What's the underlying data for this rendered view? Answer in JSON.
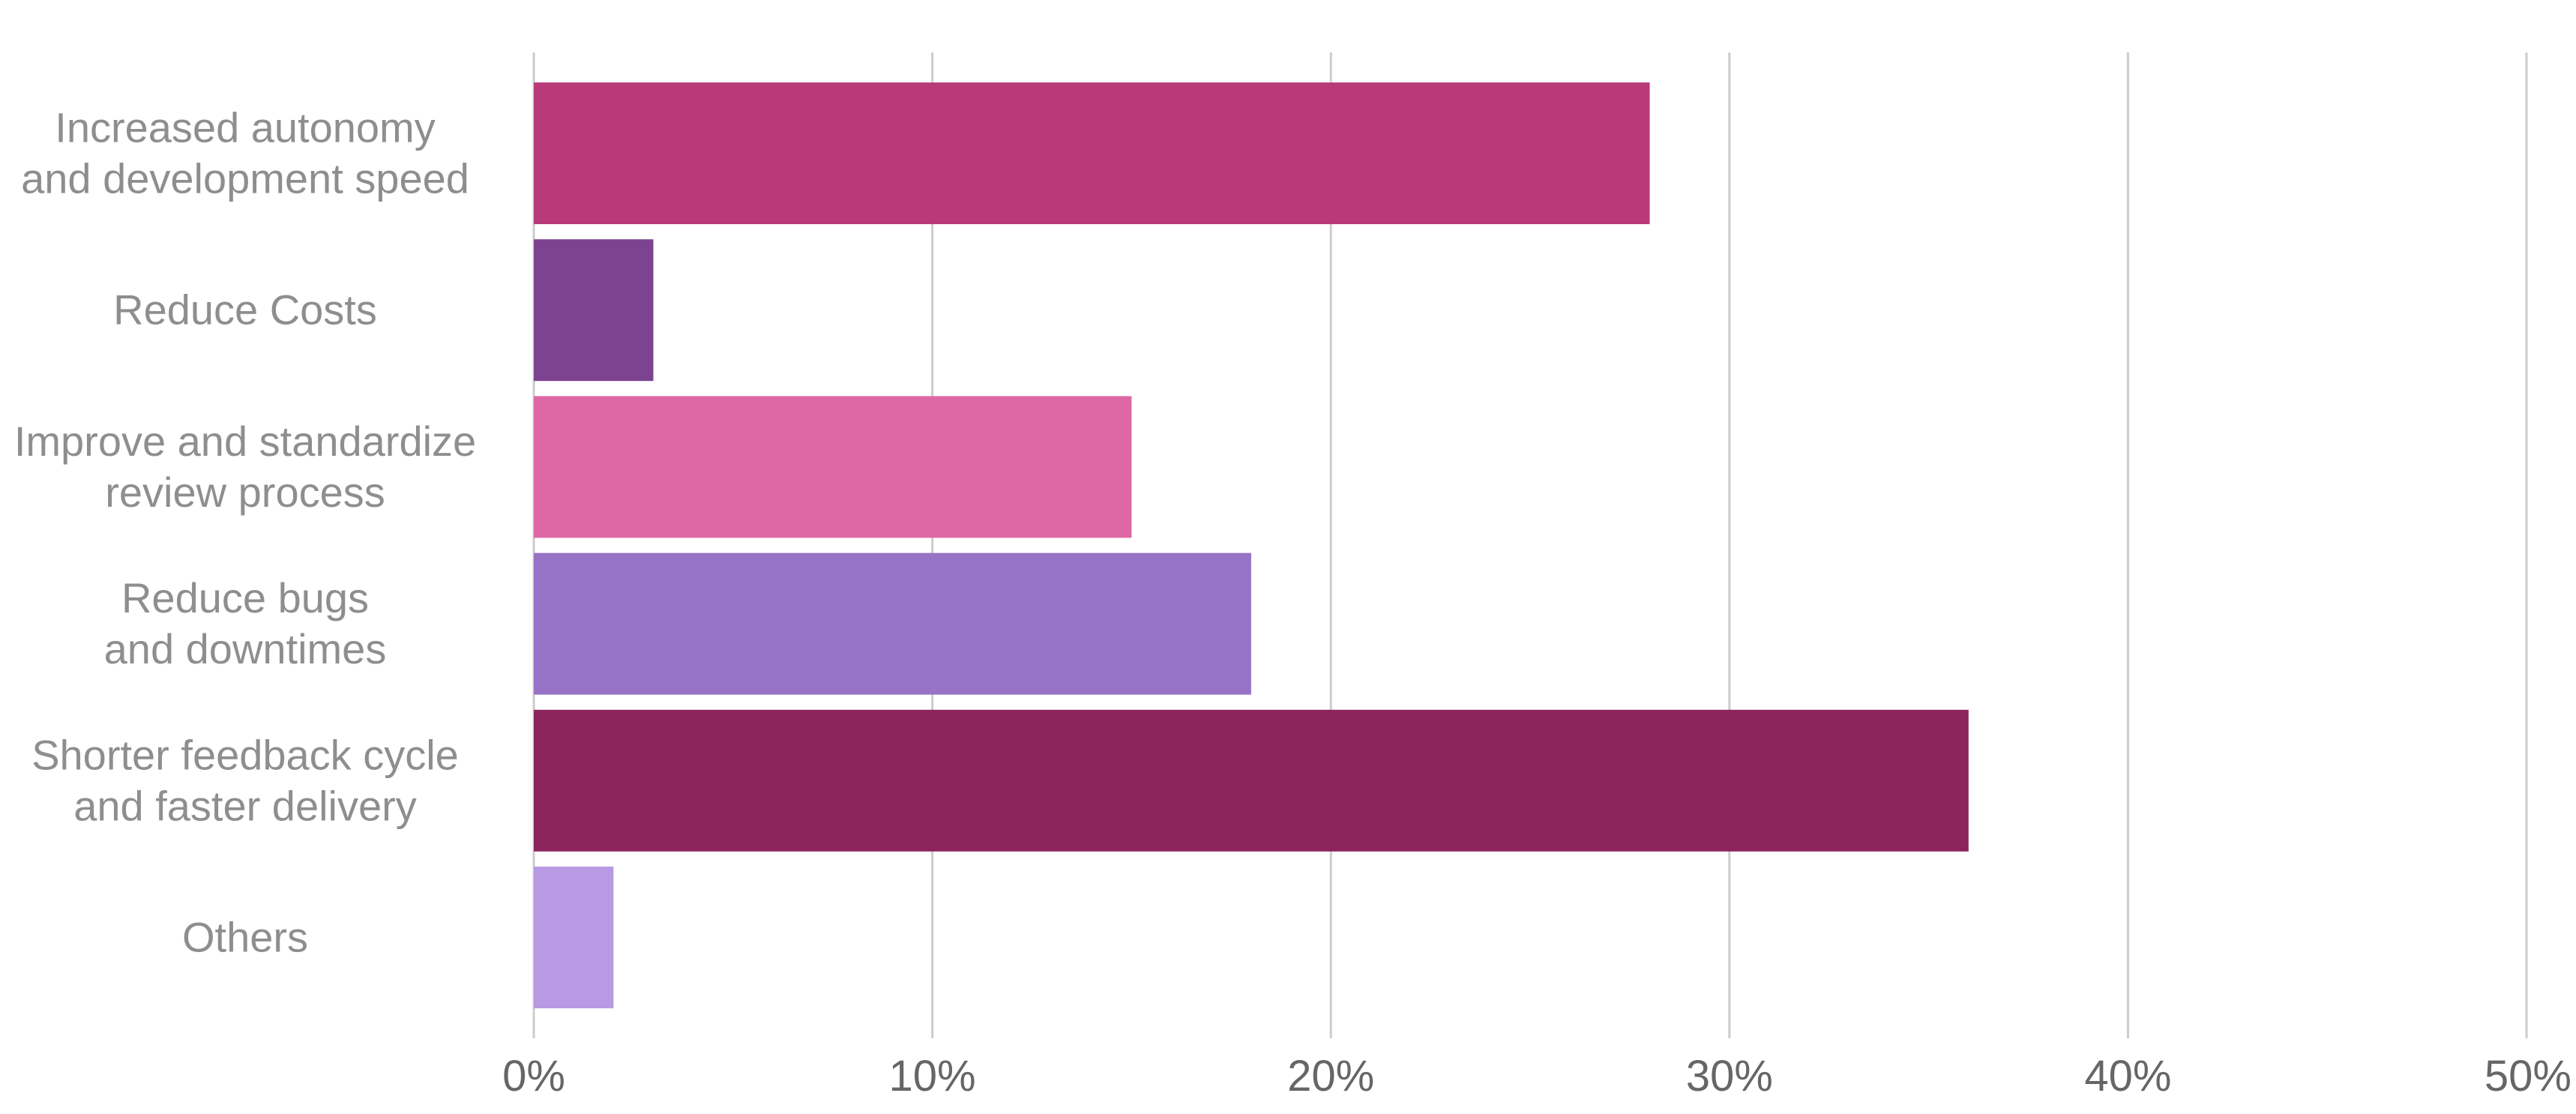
{
  "chart_data": {
    "type": "bar",
    "orientation": "horizontal",
    "categories": [
      [
        "Increased autonomy",
        "and development speed"
      ],
      [
        "Reduce Costs"
      ],
      [
        "Improve and standardize",
        "review process"
      ],
      [
        "Reduce bugs",
        "and downtimes"
      ],
      [
        "Shorter feedback cycle",
        "and faster delivery"
      ],
      [
        "Others"
      ]
    ],
    "values": [
      28,
      3,
      15,
      18,
      36,
      2
    ],
    "unit": "%",
    "colors": [
      "#b93a78",
      "#7c4390",
      "#de67a5",
      "#9673c6",
      "#8b255c",
      "#b899e3"
    ],
    "xlim": [
      0,
      50
    ],
    "xticks": [
      0,
      10,
      20,
      30,
      40,
      50
    ],
    "xtick_labels": [
      "0%",
      "10%",
      "20%",
      "30%",
      "40%",
      "50%"
    ],
    "title": "",
    "xlabel": "",
    "ylabel": "",
    "grid": "vertical",
    "legend": "none"
  }
}
